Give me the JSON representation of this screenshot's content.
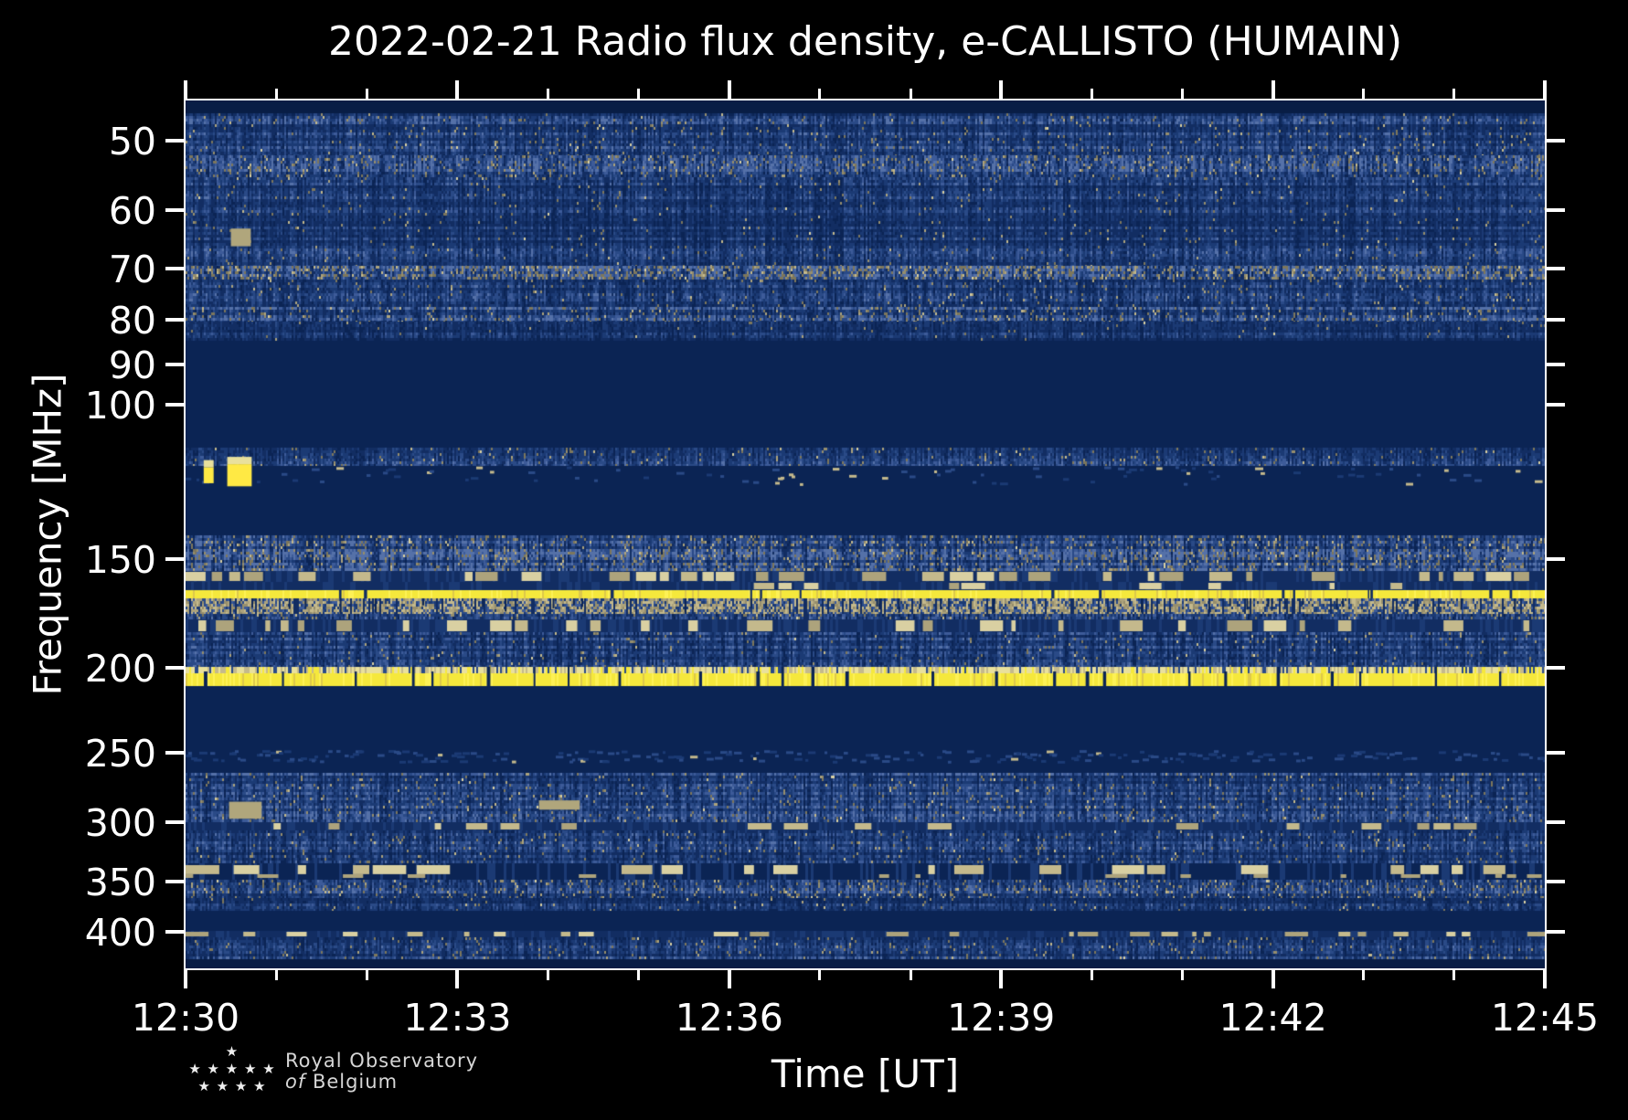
{
  "title": "2022-02-21 Radio flux density, e-CALLISTO (HUMAIN)",
  "axes": {
    "x_label": "Time [UT]",
    "y_label": "Frequency [MHz]"
  },
  "logo": {
    "stars": [
      "★",
      "★ ★ ★ ★ ★",
      "★ ★ ★ ★"
    ],
    "line1": "Royal Observatory",
    "line2_italic": "of",
    "line2_rest": "Belgium"
  },
  "chart_data": {
    "type": "heatmap",
    "title": "2022-02-21 Radio flux density, e-CALLISTO (HUMAIN)",
    "xlabel": "Time [UT]",
    "ylabel": "Frequency [MHz]",
    "x_start_ut": "12:30",
    "x_end_ut": "12:45",
    "x_range_minutes": [
      0,
      15
    ],
    "x_ticks": {
      "major": [
        {
          "minute": 0,
          "label": "12:30"
        },
        {
          "minute": 3,
          "label": "12:33"
        },
        {
          "minute": 6,
          "label": "12:36"
        },
        {
          "minute": 9,
          "label": "12:39"
        },
        {
          "minute": 12,
          "label": "12:42"
        },
        {
          "minute": 15,
          "label": "12:45"
        }
      ],
      "minor_minutes": [
        1,
        2,
        4,
        5,
        7,
        8,
        10,
        11,
        13,
        14
      ]
    },
    "y_scale": "log",
    "y_range_mhz": [
      45,
      440
    ],
    "y_ticks_mhz": [
      50,
      60,
      70,
      80,
      90,
      100,
      150,
      200,
      250,
      300,
      350,
      400
    ],
    "grid": false,
    "legend": "none",
    "palette": {
      "figure_bg": "#000000",
      "plot_bg": "#0b2454",
      "quiet_dark": "#081d45",
      "blue_ramp": [
        "#0b2454",
        "#122d62",
        "#1b3a74",
        "#2a4a87",
        "#3d5b99",
        "#5571a8"
      ],
      "tan_ramp": [
        "#7d775c",
        "#968e6d",
        "#ada37c",
        "#c4b98c",
        "#d9d0a2"
      ],
      "yellow_main": "#f5e83c",
      "yellow_bright": "#fdf155",
      "yellow_pale": "#e9e09c",
      "yellow_deep": "#ddc94a",
      "axis_color": "#ffffff",
      "text_color": "#ffffff",
      "logo_text_color": "#d6d6d6"
    },
    "bands": [
      {
        "f": [
          45,
          46.5
        ],
        "kind": "quiet",
        "shade": "dark"
      },
      {
        "f": [
          46.5,
          52
        ],
        "kind": "noise",
        "light": 0.4,
        "tan": 0.05
      },
      {
        "f": [
          52,
          55
        ],
        "kind": "noise",
        "light": 0.52,
        "tan": 0.12
      },
      {
        "f": [
          55,
          69.5
        ],
        "kind": "noise",
        "light": 0.34,
        "tan": 0.03
      },
      {
        "f": [
          69.5,
          72
        ],
        "kind": "noise",
        "light": 0.6,
        "tan": 0.3
      },
      {
        "f": [
          72,
          77.5
        ],
        "kind": "noise",
        "light": 0.34,
        "tan": 0.04
      },
      {
        "f": [
          77.5,
          80.5
        ],
        "kind": "noise",
        "light": 0.5,
        "tan": 0.12
      },
      {
        "f": [
          80.5,
          84.5
        ],
        "kind": "noise",
        "light": 0.28,
        "tan": 0.02
      },
      {
        "f": [
          84.5,
          112
        ],
        "kind": "quiet"
      },
      {
        "f": [
          112,
          117.5
        ],
        "kind": "noise",
        "light": 0.38,
        "tan": 0.05
      },
      {
        "f": [
          117.5,
          124
        ],
        "kind": "sparse",
        "p": 0.16,
        "tan": 0.25
      },
      {
        "f": [
          124,
          141
        ],
        "kind": "quiet"
      },
      {
        "f": [
          141,
          155
        ],
        "kind": "noise",
        "light": 0.55,
        "tan": 0.16
      },
      {
        "f": [
          155,
          159.5
        ],
        "kind": "dashrow",
        "p": 0.55
      },
      {
        "f": [
          159.5,
          163
        ],
        "kind": "dashrow",
        "p": 0.3
      },
      {
        "f": [
          163,
          166.5
        ],
        "kind": "yline"
      },
      {
        "f": [
          166.5,
          173.5
        ],
        "kind": "khaki"
      },
      {
        "f": [
          173.5,
          176
        ],
        "kind": "noise",
        "light": 0.4,
        "tan": 0.08
      },
      {
        "f": [
          176,
          182
        ],
        "kind": "dashrow",
        "p": 0.35
      },
      {
        "f": [
          182,
          199.5
        ],
        "kind": "noise",
        "light": 0.42,
        "tan": 0.04
      },
      {
        "f": [
          199.5,
          209.5
        ],
        "kind": "yband"
      },
      {
        "f": [
          209.5,
          248
        ],
        "kind": "quiet"
      },
      {
        "f": [
          248,
          257
        ],
        "kind": "sparse",
        "p": 0.5,
        "tan": 0.03
      },
      {
        "f": [
          257,
          263
        ],
        "kind": "quiet"
      },
      {
        "f": [
          263,
          300
        ],
        "kind": "noise",
        "light": 0.42,
        "tan": 0.06
      },
      {
        "f": [
          300,
          306
        ],
        "kind": "dashrow",
        "p": 0.3
      },
      {
        "f": [
          306,
          334
        ],
        "kind": "noise",
        "light": 0.38,
        "tan": 0.05
      },
      {
        "f": [
          334,
          349
        ],
        "kind": "brightdash",
        "p": 0.45
      },
      {
        "f": [
          349,
          366
        ],
        "kind": "noise",
        "light": 0.45,
        "tan": 0.14
      },
      {
        "f": [
          366,
          378
        ],
        "kind": "noise",
        "light": 0.3,
        "tan": 0.03
      },
      {
        "f": [
          378,
          399
        ],
        "kind": "quiet"
      },
      {
        "f": [
          399,
          406
        ],
        "kind": "dashrow",
        "p": 0.5
      },
      {
        "f": [
          406,
          430
        ],
        "kind": "noise",
        "light": 0.4,
        "tan": 0.06
      },
      {
        "f": [
          430,
          440
        ],
        "kind": "quiet",
        "shade": "dark"
      }
    ],
    "features": [
      {
        "type": "yellow_blob",
        "t": [
          0.2,
          0.31
        ],
        "f": [
          118,
          123
        ]
      },
      {
        "type": "yellow_blob",
        "t": [
          0.46,
          0.73
        ],
        "f": [
          117,
          124
        ]
      },
      {
        "type": "tan_blob",
        "t": [
          0.5,
          0.72
        ],
        "f": [
          63,
          66
        ]
      },
      {
        "type": "tan_blob",
        "t": [
          0.48,
          0.84
        ],
        "f": [
          284,
          297
        ]
      },
      {
        "type": "tan_blob",
        "t": [
          3.9,
          4.35
        ],
        "f": [
          283,
          290
        ]
      }
    ]
  }
}
